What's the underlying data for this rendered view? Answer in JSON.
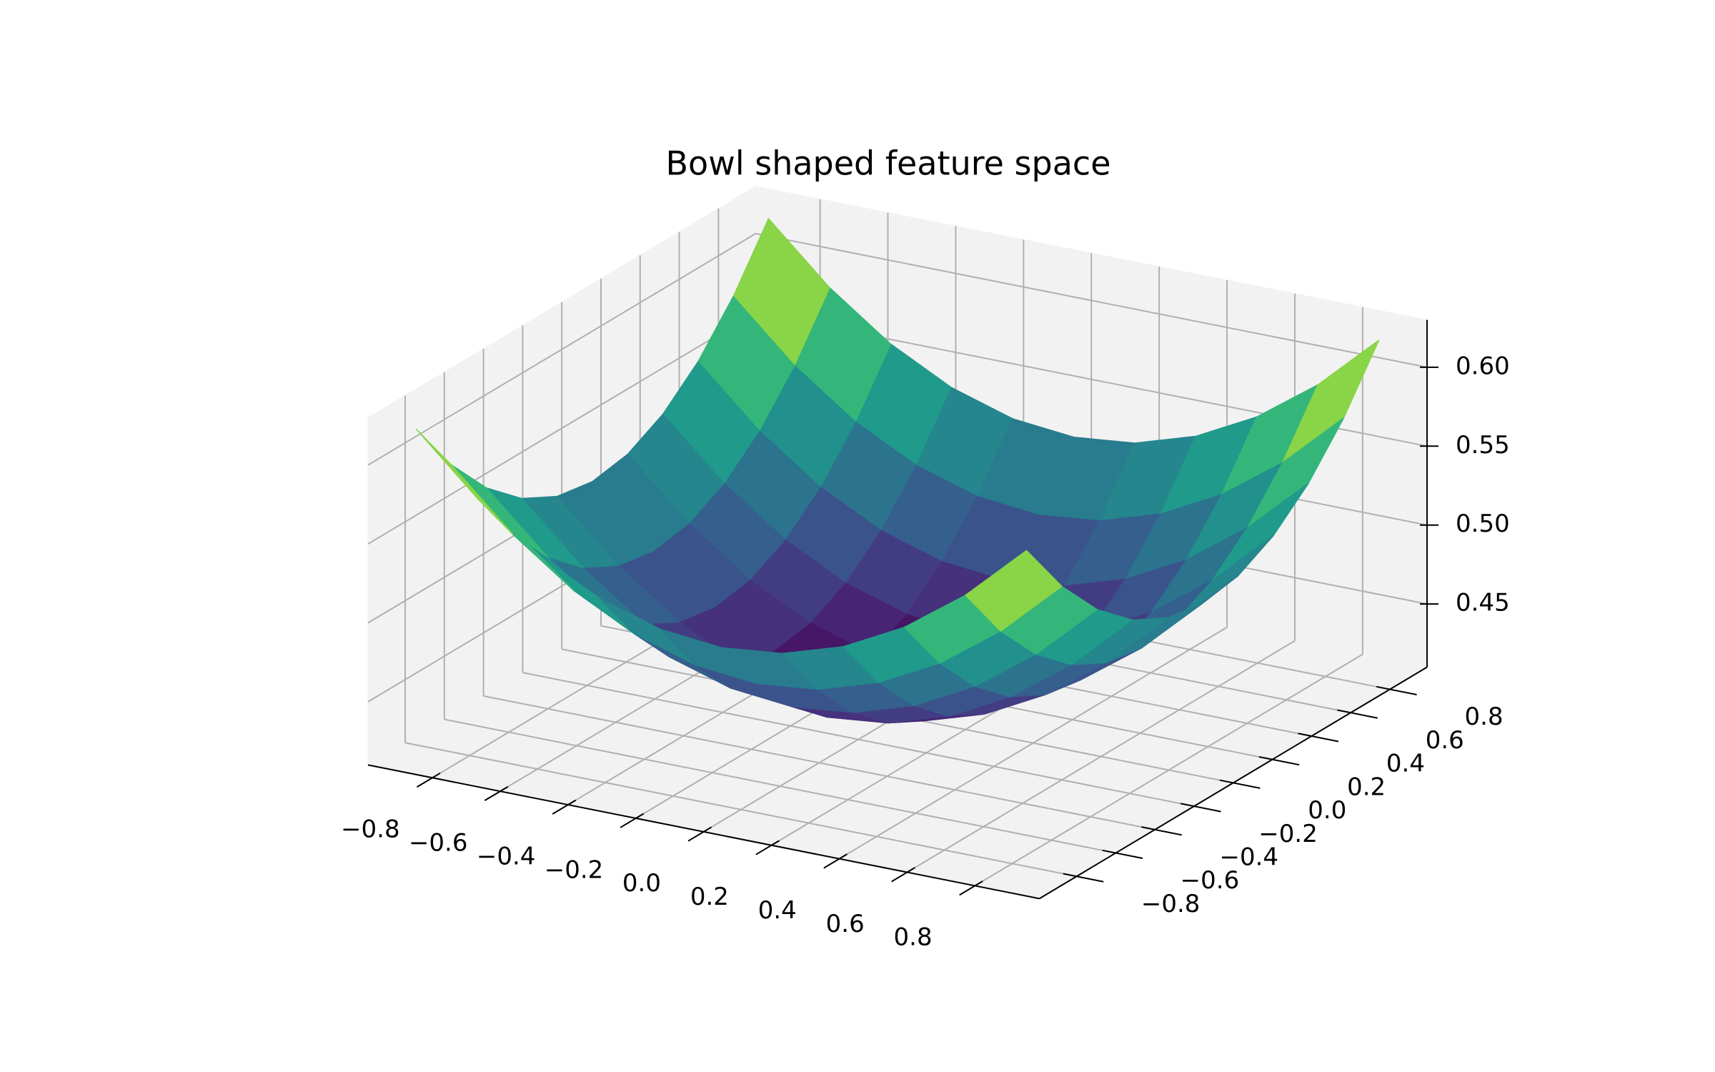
{
  "chart_data": {
    "type": "surface",
    "title": "Bowl shaped feature space",
    "colormap": "viridis",
    "x": [
      -0.9,
      -0.72,
      -0.54,
      -0.36,
      -0.18,
      0,
      0.18,
      0.36,
      0.54,
      0.72,
      0.9
    ],
    "y": [
      -0.9,
      -0.72,
      -0.54,
      -0.36,
      -0.18,
      0,
      0.18,
      0.36,
      0.54,
      0.72,
      0.9
    ],
    "z": [
      [
        0.62,
        0.584,
        0.556,
        0.536,
        0.524,
        0.52,
        0.524,
        0.536,
        0.556,
        0.584,
        0.62
      ],
      [
        0.584,
        0.548,
        0.52,
        0.5,
        0.488,
        0.484,
        0.488,
        0.5,
        0.52,
        0.548,
        0.584
      ],
      [
        0.556,
        0.52,
        0.492,
        0.472,
        0.46,
        0.456,
        0.46,
        0.472,
        0.492,
        0.52,
        0.556
      ],
      [
        0.536,
        0.5,
        0.472,
        0.452,
        0.44,
        0.436,
        0.44,
        0.452,
        0.472,
        0.5,
        0.536
      ],
      [
        0.524,
        0.488,
        0.46,
        0.44,
        0.428,
        0.424,
        0.428,
        0.44,
        0.46,
        0.488,
        0.524
      ],
      [
        0.52,
        0.484,
        0.456,
        0.436,
        0.424,
        0.42,
        0.424,
        0.436,
        0.456,
        0.484,
        0.52
      ],
      [
        0.524,
        0.488,
        0.46,
        0.44,
        0.428,
        0.424,
        0.428,
        0.44,
        0.46,
        0.488,
        0.524
      ],
      [
        0.536,
        0.5,
        0.472,
        0.452,
        0.44,
        0.436,
        0.44,
        0.452,
        0.472,
        0.5,
        0.536
      ],
      [
        0.556,
        0.52,
        0.492,
        0.472,
        0.46,
        0.456,
        0.46,
        0.472,
        0.492,
        0.52,
        0.556
      ],
      [
        0.584,
        0.548,
        0.52,
        0.5,
        0.488,
        0.484,
        0.488,
        0.5,
        0.52,
        0.548,
        0.584
      ],
      [
        0.62,
        0.584,
        0.556,
        0.536,
        0.524,
        0.52,
        0.524,
        0.536,
        0.556,
        0.584,
        0.62
      ]
    ],
    "xlim": [
      -0.99,
      0.99
    ],
    "ylim": [
      -0.99,
      0.99
    ],
    "zlim": [
      0.41,
      0.63
    ],
    "xticks": [
      {
        "value": -0.8,
        "label": "−0.8"
      },
      {
        "value": -0.6,
        "label": "−0.6"
      },
      {
        "value": -0.4,
        "label": "−0.4"
      },
      {
        "value": -0.2,
        "label": "−0.2"
      },
      {
        "value": 0,
        "label": "0.0"
      },
      0.2,
      0.4,
      0.6,
      0.8
    ],
    "yticks": [
      {
        "value": -0.8,
        "label": "−0.8"
      },
      {
        "value": -0.6,
        "label": "−0.6"
      },
      {
        "value": -0.4,
        "label": "−0.4"
      },
      {
        "value": -0.2,
        "label": "−0.2"
      },
      {
        "value": 0,
        "label": "0.0"
      },
      0.2,
      0.4,
      0.6,
      0.8
    ],
    "zticks": [
      0.45,
      {
        "value": 0.5,
        "label": "0.50"
      },
      0.55,
      {
        "value": 0.6,
        "label": "0.60"
      }
    ],
    "grid": true
  }
}
